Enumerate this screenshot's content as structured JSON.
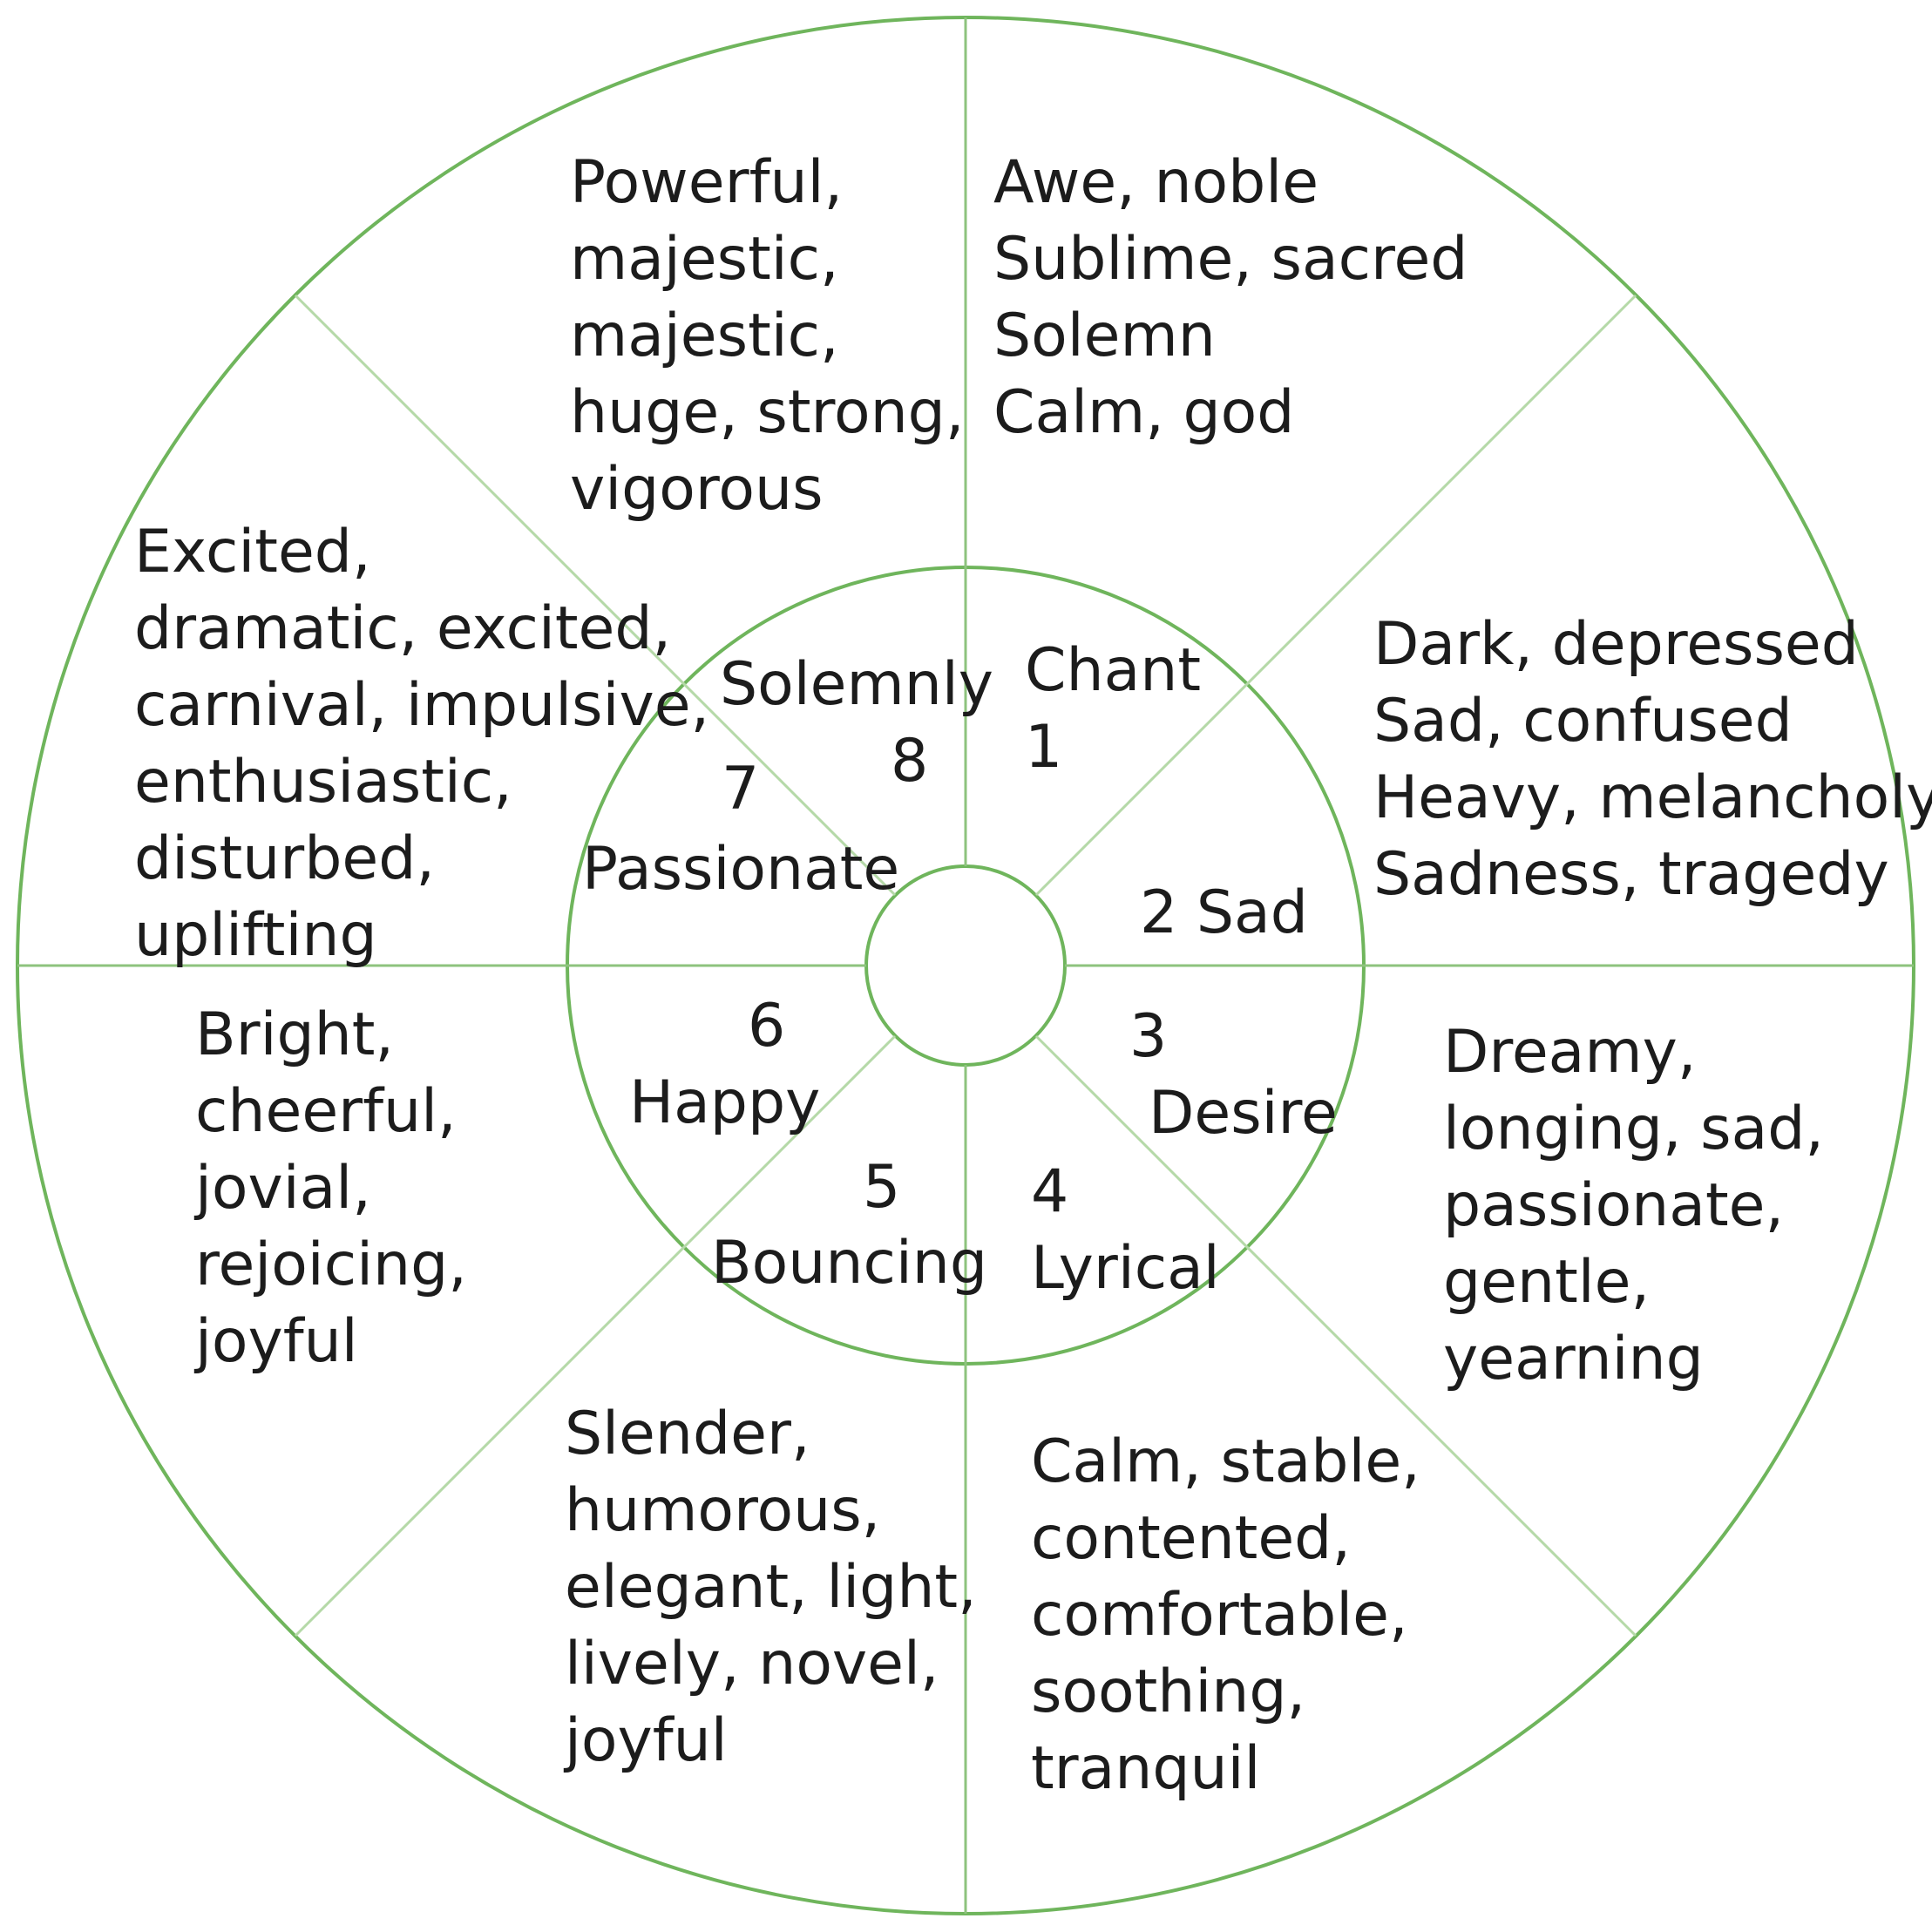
{
  "wheel": {
    "line_color": "#6fb55c",
    "segments": [
      {
        "number": "1",
        "name": "Chant",
        "descriptors": [
          "Awe, noble",
          "Sublime, sacred",
          "Solemn",
          "Calm, god"
        ]
      },
      {
        "number": "2",
        "name": "Sad",
        "label": "2 Sad",
        "descriptors": [
          "Dark, depressed",
          "Sad, confused",
          "Heavy, melancholy",
          "Sadness, tragedy"
        ]
      },
      {
        "number": "3",
        "name": "Desire",
        "descriptors": [
          "Dreamy,",
          "longing, sad,",
          "passionate,",
          "gentle,",
          "yearning"
        ]
      },
      {
        "number": "4",
        "name": "Lyrical",
        "descriptors": [
          "Calm, stable,",
          "contented,",
          "comfortable,",
          "soothing,",
          "tranquil"
        ]
      },
      {
        "number": "5",
        "name": "Bouncing",
        "descriptors": [
          "Slender,",
          "humorous,",
          "elegant, light,",
          "lively, novel,",
          "joyful"
        ]
      },
      {
        "number": "6",
        "name": "Happy",
        "descriptors": [
          "Bright,",
          "cheerful,",
          "jovial,",
          "rejoicing,",
          "joyful"
        ]
      },
      {
        "number": "7",
        "name": "Passionate",
        "descriptors": [
          "Excited,",
          "dramatic, excited,",
          "carnival, impulsive,",
          "enthusiastic,",
          "disturbed,",
          "uplifting"
        ]
      },
      {
        "number": "8",
        "name": "Solemnly",
        "descriptors": [
          "Powerful,",
          "majestic,",
          "majestic,",
          "huge, strong,",
          "vigorous"
        ]
      }
    ]
  }
}
